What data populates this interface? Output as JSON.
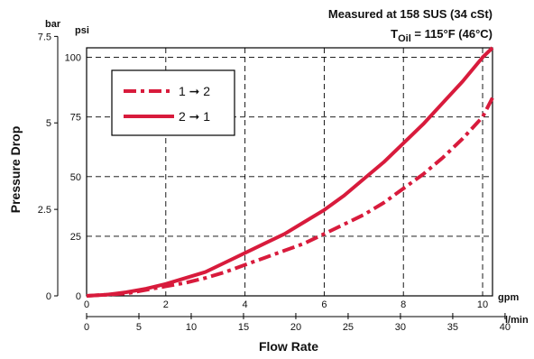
{
  "chart_data": {
    "type": "line",
    "title_line1": "Measured at 158 SUS  (34 cSt)",
    "title_line2_prefix": "T",
    "title_line2_sub": "Oil",
    "title_line2_rest": " = 115°F  (46°C)",
    "ylabel": "Pressure Drop",
    "xlabel": "Flow Rate",
    "y_unit_primary": "psi",
    "y_unit_secondary": "bar",
    "x_unit_primary": "gpm",
    "x_unit_secondary": "l/min",
    "xlim": [
      0,
      10.25
    ],
    "ylim": [
      0,
      104
    ],
    "x_ticks": [
      "0",
      "2",
      "4",
      "6",
      "8",
      "10"
    ],
    "y_ticks": [
      "0",
      "25",
      "50",
      "75",
      "100"
    ],
    "secondary_x_ticks": [
      "0",
      "5",
      "10",
      "15",
      "20",
      "25",
      "30",
      "35",
      "40"
    ],
    "secondary_y_ticks": [
      "0",
      "2.5",
      "5",
      "7.5"
    ],
    "grid": true,
    "legend_position": "top-left",
    "series": [
      {
        "name": "1 ➞ 2",
        "style": "dash-dot",
        "color": "#d81b3c",
        "x": [
          0,
          0.5,
          1,
          1.5,
          2,
          2.5,
          3,
          3.5,
          4,
          4.5,
          5,
          5.5,
          6,
          6.5,
          7,
          7.5,
          8,
          8.5,
          9,
          9.5,
          10,
          10.25
        ],
        "y": [
          0,
          0.5,
          1,
          2.5,
          4,
          5.5,
          7.5,
          10,
          13,
          16,
          19,
          22,
          26,
          30,
          34,
          39,
          45,
          51,
          58,
          66,
          75,
          83
        ]
      },
      {
        "name": "2 ➞ 1",
        "style": "solid",
        "color": "#d81b3c",
        "x": [
          0,
          0.5,
          1,
          1.5,
          2,
          2.5,
          3,
          3.5,
          4,
          4.5,
          5,
          5.5,
          6,
          6.5,
          7,
          7.5,
          8,
          8.5,
          9,
          9.5,
          10,
          10.25
        ],
        "y": [
          0,
          0.5,
          1.5,
          3,
          5,
          7.5,
          10,
          14,
          18,
          22,
          26,
          31,
          36,
          42,
          49,
          56,
          64,
          72,
          81,
          90,
          100,
          104
        ]
      }
    ]
  }
}
